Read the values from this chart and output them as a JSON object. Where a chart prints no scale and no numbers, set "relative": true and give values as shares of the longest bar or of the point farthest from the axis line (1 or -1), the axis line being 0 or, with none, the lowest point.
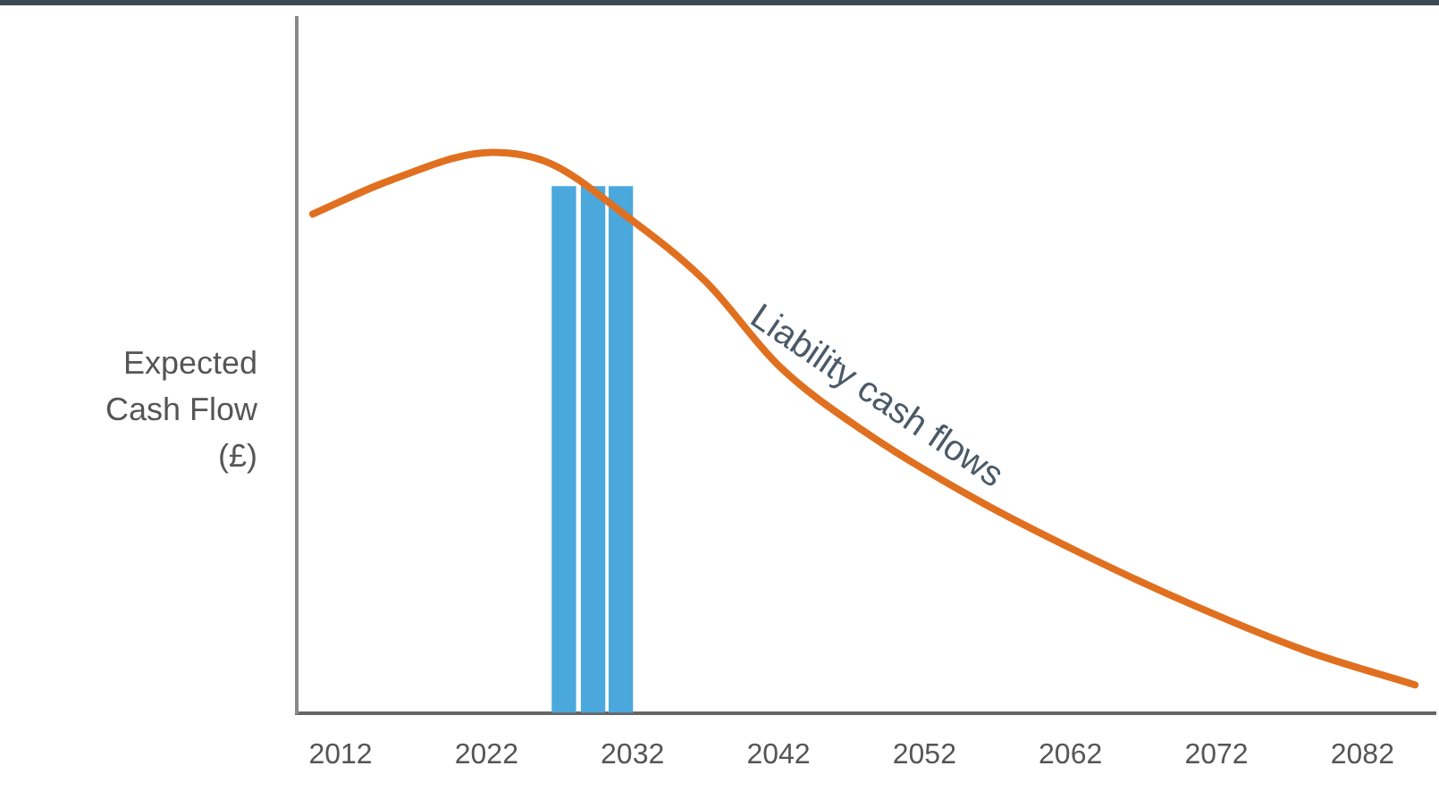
{
  "chart_data": {
    "type": "line",
    "relative": true,
    "ylabel": "Expected Cash Flow (£)",
    "xlim": [
      2009,
      2087
    ],
    "xticks": [
      2012,
      2022,
      2032,
      2042,
      2052,
      2062,
      2072,
      2082
    ],
    "grid": false,
    "legend": false,
    "marker": "none",
    "series": [
      {
        "name": "Liability cash flows",
        "color": "#e07020",
        "x": [
          2010.1,
          2015.4,
          2022.4,
          2026.4,
          2031.4,
          2037,
          2042,
          2048,
          2055.6,
          2063.1,
          2070.6,
          2078.2,
          2085.6
        ],
        "values": [
          0.89,
          0.95,
          1.0,
          0.98,
          0.89,
          0.77,
          0.62,
          0.5,
          0.38,
          0.28,
          0.19,
          0.11,
          0.05
        ]
      },
      {
        "type": "bar",
        "color": "#4aa8dc",
        "x": [
          2027.3,
          2029.3,
          2031.2
        ],
        "values": [
          0.94,
          0.94,
          0.94
        ]
      }
    ]
  }
}
